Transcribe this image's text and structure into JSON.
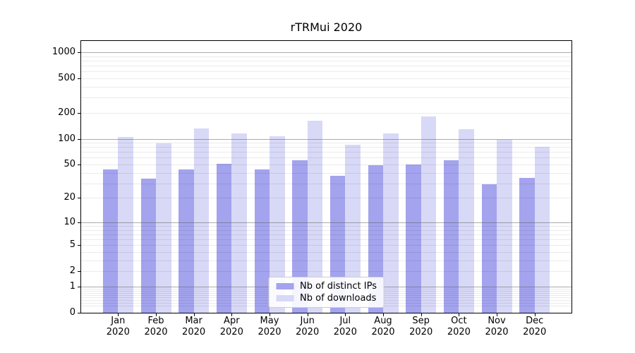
{
  "chart_data": {
    "type": "bar",
    "title": "rTRMui 2020",
    "categories": [
      "Jan 2020",
      "Feb 2020",
      "Mar 2020",
      "Apr 2020",
      "May 2020",
      "Jun 2020",
      "Jul 2020",
      "Aug 2020",
      "Sep 2020",
      "Oct 2020",
      "Nov 2020",
      "Dec 2020"
    ],
    "series": [
      {
        "name": "Nb of distinct IPs",
        "color": "#a3a3ee",
        "values": [
          44,
          34,
          44,
          51,
          44,
          56,
          37,
          49,
          50,
          56,
          29,
          35
        ]
      },
      {
        "name": "Nb of downloads",
        "color": "#d8d8f7",
        "values": [
          105,
          88,
          131,
          115,
          107,
          163,
          85,
          115,
          181,
          128,
          97,
          80
        ]
      }
    ],
    "xlabel": "",
    "ylabel": "",
    "yscale": "log1p",
    "ylim": [
      0,
      1348
    ],
    "y_ticks": [
      0,
      1,
      2,
      5,
      10,
      20,
      50,
      100,
      200,
      500,
      1000
    ],
    "grid": {
      "show": true,
      "major_at": [
        1,
        10,
        100,
        1000
      ],
      "minor_subs": [
        2,
        3,
        4,
        5,
        6,
        7,
        8,
        9
      ],
      "minor_decades": [
        -1,
        0,
        1,
        2
      ]
    },
    "legend": {
      "position": "lower center",
      "entries": [
        "Nb of distinct IPs",
        "Nb of downloads"
      ]
    }
  },
  "colors": {
    "background": "#ffffff",
    "axis": "#000000",
    "bar_distinct_ips": "#a3a3ee",
    "bar_downloads": "#d8d8f7"
  }
}
